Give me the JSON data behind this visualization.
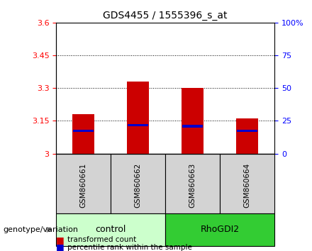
{
  "title": "GDS4455 / 1555396_s_at",
  "samples": [
    "GSM860661",
    "GSM860662",
    "GSM860663",
    "GSM860664"
  ],
  "groups": [
    "control",
    "control",
    "RhoGDI2",
    "RhoGDI2"
  ],
  "transformed_count": [
    3.18,
    3.33,
    3.3,
    3.16
  ],
  "percentile_rank": [
    3.105,
    3.13,
    3.125,
    3.105
  ],
  "ylim_left": [
    3.0,
    3.6
  ],
  "ylim_right": [
    0,
    100
  ],
  "yticks_left": [
    3.0,
    3.15,
    3.3,
    3.45,
    3.6
  ],
  "yticks_right": [
    0,
    25,
    50,
    75,
    100
  ],
  "ytick_labels_left": [
    "3",
    "3.15",
    "3.3",
    "3.45",
    "3.6"
  ],
  "ytick_labels_right": [
    "0",
    "25",
    "50",
    "75",
    "100%"
  ],
  "bar_color": "#cc0000",
  "percentile_color": "#0000cc",
  "control_color": "#ccffcc",
  "rhodgi2_color": "#33cc33",
  "sample_box_color": "#d3d3d3",
  "group_labels": [
    "control",
    "RhoGDI2"
  ],
  "legend_items": [
    "transformed count",
    "percentile rank within the sample"
  ],
  "genotype_label": "genotype/variation",
  "bar_width": 0.4
}
